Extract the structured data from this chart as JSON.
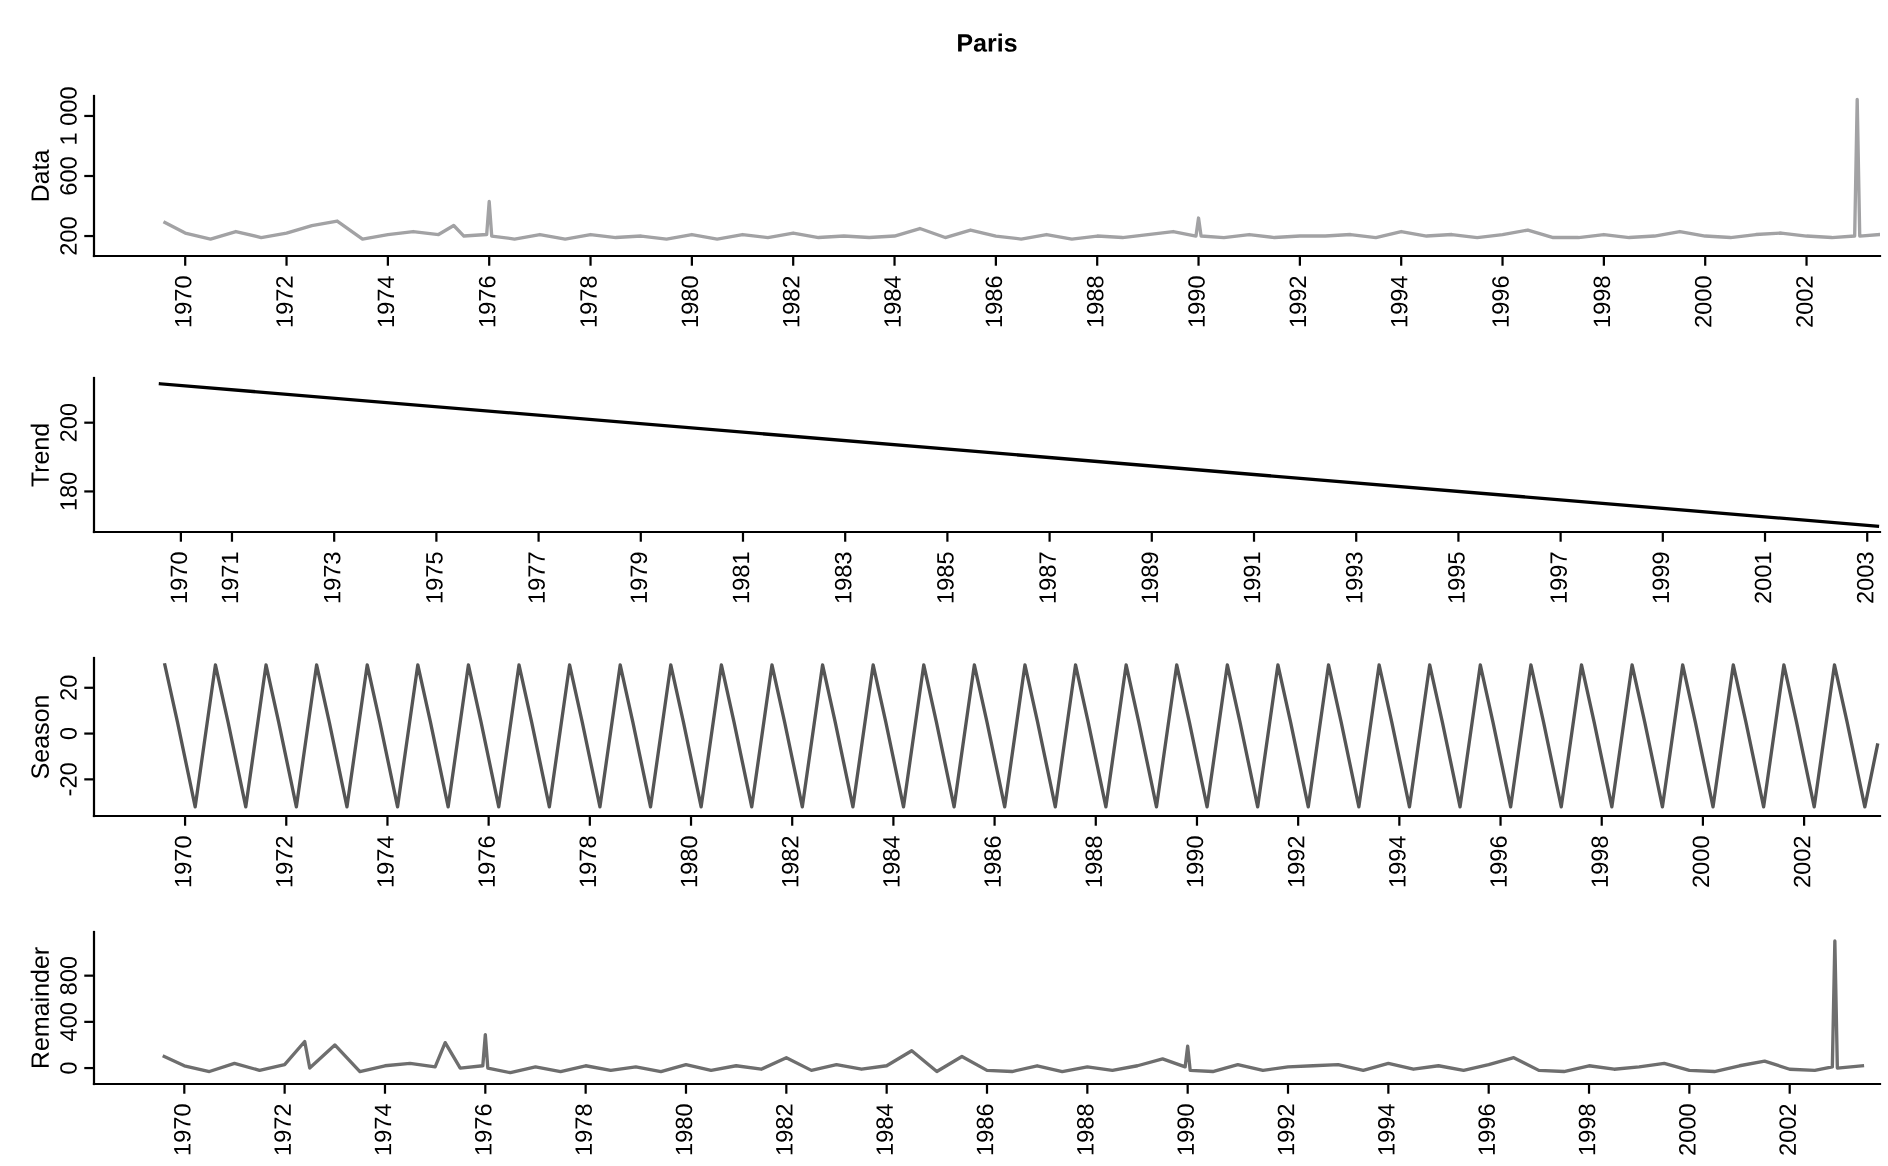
{
  "chart_data": [
    {
      "type": "line",
      "title": "Paris",
      "ylabel": "Data",
      "xlim": [
        1968.2,
        2003.45
      ],
      "xticks": [
        1970,
        1972,
        1974,
        1976,
        1978,
        1980,
        1982,
        1984,
        1986,
        1988,
        1990,
        1992,
        1994,
        1996,
        1998,
        2000,
        2002
      ],
      "ylim": [
        67,
        1133
      ],
      "yticks": [
        200,
        600,
        {
          "value": 1000,
          "label": "1 000"
        }
      ],
      "series": [
        {
          "color": "#a2a2a4",
          "x": [
            1969.6,
            1970.0,
            1970.5,
            1971.0,
            1971.5,
            1972.0,
            1972.5,
            1973.0,
            1973.5,
            1974.0,
            1974.5,
            1975.0,
            1975.3,
            1975.5,
            1975.95,
            1976.0,
            1976.05,
            1976.5,
            1977.0,
            1977.5,
            1978.0,
            1978.5,
            1979.0,
            1979.5,
            1980.0,
            1980.5,
            1981.0,
            1981.5,
            1982.0,
            1982.5,
            1983.0,
            1983.5,
            1984.0,
            1984.5,
            1985.0,
            1985.5,
            1986.0,
            1986.5,
            1987.0,
            1987.5,
            1988.0,
            1988.5,
            1989.0,
            1989.5,
            1989.95,
            1990.0,
            1990.05,
            1990.5,
            1991.0,
            1991.5,
            1992.0,
            1992.5,
            1993.0,
            1993.5,
            1994.0,
            1994.5,
            1995.0,
            1995.5,
            1996.0,
            1996.5,
            1997.0,
            1997.5,
            1998.0,
            1998.5,
            1999.0,
            1999.5,
            2000.0,
            2000.5,
            2001.0,
            2001.5,
            2002.0,
            2002.5,
            2002.95,
            2003.0,
            2003.05,
            2003.45
          ],
          "values": [
            290,
            220,
            180,
            230,
            190,
            220,
            270,
            300,
            180,
            210,
            230,
            210,
            270,
            200,
            210,
            430,
            200,
            180,
            210,
            180,
            210,
            190,
            200,
            180,
            210,
            180,
            210,
            190,
            220,
            190,
            200,
            190,
            200,
            250,
            190,
            240,
            200,
            180,
            210,
            180,
            200,
            190,
            210,
            230,
            200,
            320,
            200,
            190,
            210,
            190,
            200,
            200,
            210,
            190,
            230,
            200,
            210,
            190,
            210,
            240,
            190,
            190,
            210,
            190,
            200,
            230,
            200,
            190,
            210,
            220,
            200,
            190,
            200,
            1110,
            200,
            210
          ]
        }
      ]
    },
    {
      "type": "line",
      "ylabel": "Trend",
      "xlim": [
        1968.3,
        2003.25
      ],
      "xticks": [
        1970,
        1971,
        1973,
        1975,
        1977,
        1979,
        1981,
        1983,
        1985,
        1987,
        1989,
        1991,
        1993,
        1995,
        1997,
        1999,
        2001,
        2003
      ],
      "ylim": [
        168.2,
        213
      ],
      "yticks": [
        180,
        200
      ],
      "series": [
        {
          "color": "#000000",
          "x": [
            1969.6,
            2003.2
          ],
          "values": [
            211.3,
            169.9
          ]
        }
      ]
    },
    {
      "type": "line",
      "ylabel": "Season",
      "xlim": [
        1968.2,
        2003.5
      ],
      "xticks": [
        1970,
        1972,
        1974,
        1976,
        1978,
        1980,
        1982,
        1984,
        1986,
        1988,
        1990,
        1992,
        1994,
        1996,
        1998,
        2000,
        2002
      ],
      "ylim": [
        -36,
        33
      ],
      "yticks": [
        {
          "value": -20,
          "label": "-20"
        },
        0,
        20
      ],
      "series": [
        {
          "color": "#555555",
          "x": [
            1969.6,
            1969.85,
            1970.2,
            1970.6,
            1970.85,
            1971.2,
            1971.6,
            1971.85,
            1972.2,
            1972.6,
            1972.85,
            1973.2,
            1973.6,
            1973.85,
            1974.2,
            1974.6,
            1974.85,
            1975.2,
            1975.6,
            1975.85,
            1976.2,
            1976.6,
            1976.85,
            1977.2,
            1977.6,
            1977.85,
            1978.2,
            1978.6,
            1978.85,
            1979.2,
            1979.6,
            1979.85,
            1980.2,
            1980.6,
            1980.85,
            1981.2,
            1981.6,
            1981.85,
            1982.2,
            1982.6,
            1982.85,
            1983.2,
            1983.6,
            1983.85,
            1984.2,
            1984.6,
            1984.85,
            1985.2,
            1985.6,
            1985.85,
            1986.2,
            1986.6,
            1986.85,
            1987.2,
            1987.6,
            1987.85,
            1988.2,
            1988.6,
            1988.85,
            1989.2,
            1989.6,
            1989.85,
            1990.2,
            1990.6,
            1990.85,
            1991.2,
            1991.6,
            1991.85,
            1992.2,
            1992.6,
            1992.85,
            1993.2,
            1993.6,
            1993.85,
            1994.2,
            1994.6,
            1994.85,
            1995.2,
            1995.6,
            1995.85,
            1996.2,
            1996.6,
            1996.85,
            1997.2,
            1997.6,
            1997.85,
            1998.2,
            1998.6,
            1998.85,
            1999.2,
            1999.6,
            1999.85,
            2000.2,
            2000.6,
            2000.85,
            2001.2,
            2001.6,
            2001.85,
            2002.2,
            2002.6,
            2002.85,
            2003.2,
            2003.45
          ],
          "values": [
            30,
            5,
            -32,
            30,
            5,
            -32,
            30,
            5,
            -32,
            30,
            5,
            -32,
            30,
            5,
            -32,
            30,
            5,
            -32,
            30,
            5,
            -32,
            30,
            5,
            -32,
            30,
            5,
            -32,
            30,
            5,
            -32,
            30,
            5,
            -32,
            30,
            5,
            -32,
            30,
            5,
            -32,
            30,
            5,
            -32,
            30,
            5,
            -32,
            30,
            5,
            -32,
            30,
            5,
            -32,
            30,
            5,
            -32,
            30,
            5,
            -32,
            30,
            5,
            -32,
            30,
            5,
            -32,
            30,
            5,
            -32,
            30,
            5,
            -32,
            30,
            5,
            -32,
            30,
            5,
            -32,
            30,
            5,
            -32,
            30,
            5,
            -32,
            30,
            5,
            -32,
            30,
            5,
            -32,
            30,
            5,
            -32,
            30,
            5,
            -32,
            30,
            5,
            -32,
            30,
            5,
            -32,
            30,
            5,
            -32,
            -5
          ]
        }
      ]
    },
    {
      "type": "line",
      "ylabel": "Remainder",
      "xlim": [
        1968.2,
        2003.8
      ],
      "xticks": [
        1970,
        1972,
        1974,
        1976,
        1978,
        1980,
        1982,
        1984,
        1986,
        1988,
        1990,
        1992,
        1994,
        1996,
        1998,
        2000,
        2002
      ],
      "ylim": [
        -138,
        1178
      ],
      "yticks": [
        0,
        400,
        800
      ],
      "series": [
        {
          "color": "#6e6e6e",
          "x": [
            1969.6,
            1970.0,
            1970.5,
            1971.0,
            1971.5,
            1972.0,
            1972.4,
            1972.5,
            1973.0,
            1973.5,
            1974.0,
            1974.5,
            1975.0,
            1975.2,
            1975.5,
            1975.95,
            1976.0,
            1976.05,
            1976.5,
            1977.0,
            1977.5,
            1978.0,
            1978.5,
            1979.0,
            1979.5,
            1980.0,
            1980.5,
            1981.0,
            1981.5,
            1982.0,
            1982.5,
            1983.0,
            1983.5,
            1984.0,
            1984.5,
            1985.0,
            1985.5,
            1986.0,
            1986.5,
            1987.0,
            1987.5,
            1988.0,
            1988.5,
            1989.0,
            1989.5,
            1989.95,
            1990.0,
            1990.05,
            1990.5,
            1991.0,
            1991.5,
            1992.0,
            1992.5,
            1993.0,
            1993.5,
            1994.0,
            1994.5,
            1995.0,
            1995.5,
            1996.0,
            1996.5,
            1997.0,
            1997.5,
            1998.0,
            1998.5,
            1999.0,
            1999.5,
            2000.0,
            2000.5,
            2001.0,
            2001.5,
            2002.0,
            2002.5,
            2002.85,
            2002.9,
            2002.95,
            2003.45
          ],
          "values": [
            100,
            20,
            -30,
            40,
            -20,
            30,
            230,
            0,
            200,
            -30,
            20,
            40,
            10,
            220,
            0,
            20,
            290,
            0,
            -40,
            10,
            -30,
            20,
            -20,
            10,
            -30,
            30,
            -20,
            20,
            -10,
            90,
            -20,
            30,
            -10,
            20,
            150,
            -30,
            100,
            -20,
            -30,
            20,
            -30,
            10,
            -20,
            20,
            80,
            10,
            190,
            -20,
            -30,
            30,
            -20,
            10,
            20,
            30,
            -20,
            40,
            -10,
            20,
            -20,
            30,
            90,
            -20,
            -30,
            20,
            -10,
            10,
            40,
            -20,
            -30,
            20,
            60,
            -10,
            -20,
            10,
            1100,
            0,
            20
          ]
        }
      ]
    }
  ]
}
